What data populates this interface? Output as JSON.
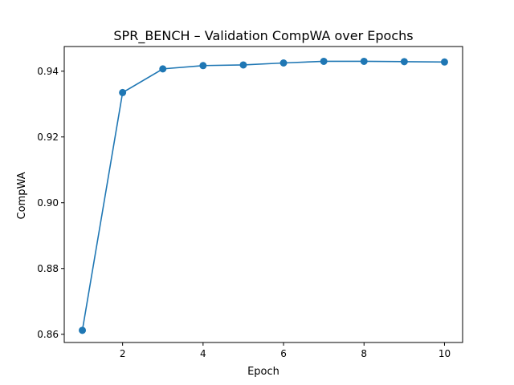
{
  "chart_data": {
    "type": "line",
    "title": "SPR_BENCH – Validation CompWA over Epochs",
    "xlabel": "Epoch",
    "ylabel": "CompWA",
    "xlim": [
      0.55,
      10.45
    ],
    "ylim": [
      0.8575,
      0.9475
    ],
    "xticks": [
      2,
      4,
      6,
      8,
      10
    ],
    "yticks": [
      0.86,
      0.88,
      0.9,
      0.92,
      0.94
    ],
    "ytick_labels": [
      "0.86",
      "0.88",
      "0.90",
      "0.92",
      "0.94"
    ],
    "grid": false,
    "series": [
      {
        "color": "#1f77b4",
        "marker": "circle",
        "x": [
          1,
          2,
          3,
          4,
          5,
          6,
          7,
          8,
          9,
          10
        ],
        "y": [
          0.8612,
          0.9335,
          0.9407,
          0.9417,
          0.9419,
          0.9425,
          0.943,
          0.943,
          0.9429,
          0.9428
        ]
      }
    ]
  }
}
